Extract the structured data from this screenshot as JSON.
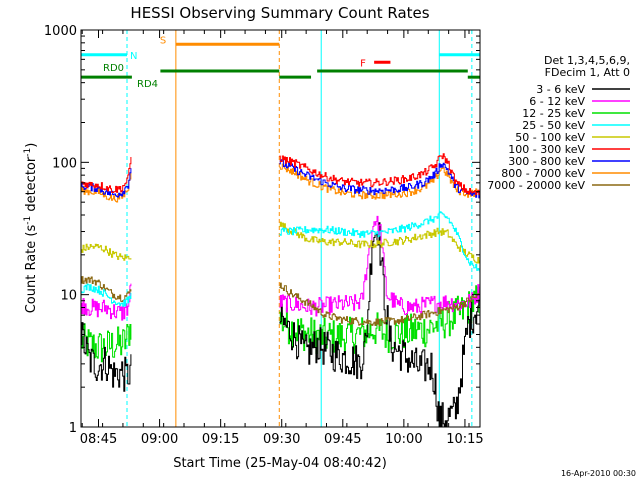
{
  "chart_data": {
    "type": "line",
    "title": "HESSI Observing Summary Count Rates",
    "xlabel": "Start Time (25-May-04 08:40:42)",
    "ylabel_main": "Count Rate (s",
    "ylabel_sup": "-1",
    "ylabel_rest": " detector",
    "ylabel_sup2": "-1",
    "ylabel_end": ")",
    "y_scale": "log",
    "ylim": [
      1,
      1000
    ],
    "y_ticks": [
      {
        "value": 1,
        "label": "1"
      },
      {
        "value": 10,
        "label": "10"
      },
      {
        "value": 100,
        "label": "100"
      },
      {
        "value": 1000,
        "label": "1000"
      }
    ],
    "xlim_minutes": [
      0,
      98
    ],
    "x_ticks": [
      {
        "minute": 4.3,
        "label": "08:45"
      },
      {
        "minute": 19.3,
        "label": "09:00"
      },
      {
        "minute": 34.3,
        "label": "09:15"
      },
      {
        "minute": 49.3,
        "label": "09:30"
      },
      {
        "minute": 64.3,
        "label": "09:45"
      },
      {
        "minute": 79.3,
        "label": "10:00"
      },
      {
        "minute": 94.3,
        "label": "10:15"
      }
    ],
    "legend": {
      "placement": "right",
      "header": [
        "Det 1,3,4,5,6,9,",
        "FDecim 1, Att 0"
      ],
      "entries": [
        {
          "label": "3 - 6 keV",
          "color": "#000000"
        },
        {
          "label": "6 - 12 keV",
          "color": "#ff00ff"
        },
        {
          "label": "12 - 25 keV",
          "color": "#00e000"
        },
        {
          "label": "25 - 50 keV",
          "color": "#00ffff"
        },
        {
          "label": "50 - 100 keV",
          "color": "#c8c800"
        },
        {
          "label": "100 - 300 keV",
          "color": "#ff0000"
        },
        {
          "label": "300 - 800 keV",
          "color": "#0000ff"
        },
        {
          "label": "800 - 7000 keV",
          "color": "#ff8c00"
        },
        {
          "label": "7000 - 20000 keV",
          "color": "#8b6914"
        }
      ]
    },
    "segments": [
      {
        "start": 0,
        "end": 12.5
      },
      {
        "start": 48.7,
        "end": 98
      }
    ],
    "series": [
      {
        "name": "3 - 6 keV",
        "color": "#000000",
        "seg1": [
          [
            0,
            5
          ],
          [
            2,
            3.2
          ],
          [
            4,
            2.9
          ],
          [
            6,
            3.1
          ],
          [
            8,
            2.5
          ],
          [
            10,
            2.6
          ],
          [
            11,
            2.4
          ],
          [
            12.3,
            2.7
          ]
        ],
        "seg2": [
          [
            48.7,
            6.5
          ],
          [
            52,
            5
          ],
          [
            55,
            3.6
          ],
          [
            58,
            4.2
          ],
          [
            62,
            3.6
          ],
          [
            64,
            3.4
          ],
          [
            67,
            3.2
          ],
          [
            68.5,
            3
          ],
          [
            70,
            4.5
          ],
          [
            71.5,
            28
          ],
          [
            73,
            32
          ],
          [
            74.5,
            9
          ],
          [
            76,
            4.2
          ],
          [
            79,
            3.5
          ],
          [
            83,
            2.8
          ],
          [
            86,
            2.9
          ],
          [
            87,
            2
          ],
          [
            88,
            1.1
          ],
          [
            92,
            1.3
          ],
          [
            95,
            6
          ],
          [
            98,
            9
          ]
        ]
      },
      {
        "name": "6 - 12 keV",
        "color": "#ff00ff",
        "seg1": [
          [
            0,
            8.5
          ],
          [
            2,
            8
          ],
          [
            4,
            7.8
          ],
          [
            6,
            8
          ],
          [
            8,
            7.5
          ],
          [
            10,
            7.2
          ],
          [
            11.5,
            8
          ],
          [
            12.3,
            12
          ]
        ],
        "seg2": [
          [
            48.7,
            8.8
          ],
          [
            52,
            8.5
          ],
          [
            56,
            8
          ],
          [
            60,
            8.2
          ],
          [
            64,
            8.5
          ],
          [
            67,
            8.5
          ],
          [
            69,
            9
          ],
          [
            70.5,
            20
          ],
          [
            72,
            38
          ],
          [
            73.5,
            30
          ],
          [
            75,
            10
          ],
          [
            78,
            8.2
          ],
          [
            82,
            8
          ],
          [
            86,
            8.5
          ],
          [
            90,
            8.8
          ],
          [
            93,
            8.5
          ],
          [
            96,
            9
          ],
          [
            98,
            11
          ]
        ]
      },
      {
        "name": "12 - 25 keV",
        "color": "#00e000",
        "seg1": [
          [
            0,
            4.5
          ],
          [
            2,
            4.2
          ],
          [
            4,
            4
          ],
          [
            6,
            4
          ],
          [
            8,
            4.2
          ],
          [
            10,
            4.2
          ],
          [
            11,
            4.5
          ],
          [
            12.3,
            6
          ]
        ],
        "seg2": [
          [
            48.7,
            6.5
          ],
          [
            52,
            5.5
          ],
          [
            56,
            5
          ],
          [
            60,
            4.8
          ],
          [
            64,
            4.8
          ],
          [
            68,
            5
          ],
          [
            70,
            5.2
          ],
          [
            72,
            5.5
          ],
          [
            75,
            5
          ],
          [
            80,
            5.2
          ],
          [
            85,
            5.5
          ],
          [
            90,
            6.5
          ],
          [
            94,
            7.5
          ],
          [
            96,
            8.5
          ],
          [
            98,
            9
          ]
        ]
      },
      {
        "name": "25 - 50 keV",
        "color": "#00ffff",
        "seg1": [
          [
            0,
            11
          ],
          [
            2,
            11.5
          ],
          [
            4,
            11
          ],
          [
            6,
            10
          ],
          [
            8,
            9
          ],
          [
            10,
            8.5
          ],
          [
            11.5,
            9
          ],
          [
            12.3,
            10
          ]
        ],
        "seg2": [
          [
            48.7,
            30
          ],
          [
            52,
            30
          ],
          [
            56,
            31
          ],
          [
            60,
            31
          ],
          [
            64,
            30
          ],
          [
            68,
            29
          ],
          [
            72,
            29
          ],
          [
            76,
            30
          ],
          [
            80,
            32
          ],
          [
            84,
            35
          ],
          [
            87,
            38
          ],
          [
            88.5,
            40
          ],
          [
            90,
            38
          ],
          [
            92,
            30
          ],
          [
            95,
            18
          ],
          [
            98,
            15
          ]
        ]
      },
      {
        "name": "50 - 100 keV",
        "color": "#c8c800",
        "seg1": [
          [
            0,
            22
          ],
          [
            2,
            23
          ],
          [
            4,
            23
          ],
          [
            6,
            22
          ],
          [
            8,
            20
          ],
          [
            10,
            19
          ],
          [
            11.5,
            19
          ],
          [
            12.3,
            20
          ]
        ],
        "seg2": [
          [
            48.7,
            34
          ],
          [
            52,
            30
          ],
          [
            56,
            26
          ],
          [
            60,
            25
          ],
          [
            64,
            25
          ],
          [
            68,
            24
          ],
          [
            72,
            24
          ],
          [
            76,
            25
          ],
          [
            80,
            26
          ],
          [
            84,
            28
          ],
          [
            88,
            30
          ],
          [
            90,
            29
          ],
          [
            92,
            24
          ],
          [
            95,
            20
          ],
          [
            98,
            18
          ]
        ]
      },
      {
        "name": "100 - 300 keV",
        "color": "#ff0000",
        "seg1": [
          [
            0,
            70
          ],
          [
            2,
            68
          ],
          [
            4,
            68
          ],
          [
            6,
            65
          ],
          [
            8,
            62
          ],
          [
            10,
            64
          ],
          [
            11.5,
            75
          ],
          [
            12.3,
            115
          ]
        ],
        "seg2": [
          [
            48.7,
            108
          ],
          [
            52,
            100
          ],
          [
            56,
            88
          ],
          [
            60,
            78
          ],
          [
            64,
            72
          ],
          [
            68,
            70
          ],
          [
            72,
            70
          ],
          [
            76,
            72
          ],
          [
            80,
            75
          ],
          [
            84,
            82
          ],
          [
            87,
            95
          ],
          [
            88.5,
            115
          ],
          [
            90,
            100
          ],
          [
            92,
            70
          ],
          [
            95,
            60
          ],
          [
            98,
            58
          ]
        ]
      },
      {
        "name": "300 - 800 keV",
        "color": "#0000ff",
        "seg1": [
          [
            0,
            66
          ],
          [
            2,
            65
          ],
          [
            4,
            64
          ],
          [
            6,
            60
          ],
          [
            8,
            57
          ],
          [
            10,
            59
          ],
          [
            11.5,
            68
          ],
          [
            12.3,
            95
          ]
        ],
        "seg2": [
          [
            48.7,
            100
          ],
          [
            52,
            90
          ],
          [
            56,
            78
          ],
          [
            60,
            70
          ],
          [
            64,
            64
          ],
          [
            68,
            62
          ],
          [
            72,
            61
          ],
          [
            76,
            62
          ],
          [
            80,
            64
          ],
          [
            84,
            70
          ],
          [
            87,
            82
          ],
          [
            88.5,
            100
          ],
          [
            90,
            88
          ],
          [
            92,
            65
          ],
          [
            95,
            58
          ],
          [
            98,
            56
          ]
        ]
      },
      {
        "name": "800 - 7000 keV",
        "color": "#ff8c00",
        "seg1": [
          [
            0,
            62
          ],
          [
            2,
            60
          ],
          [
            4,
            60
          ],
          [
            6,
            56
          ],
          [
            8,
            53
          ],
          [
            10,
            55
          ],
          [
            11.5,
            63
          ],
          [
            12.3,
            90
          ]
        ],
        "seg2": [
          [
            48.7,
            95
          ],
          [
            52,
            85
          ],
          [
            56,
            72
          ],
          [
            60,
            64
          ],
          [
            64,
            59
          ],
          [
            68,
            57
          ],
          [
            72,
            56
          ],
          [
            76,
            57
          ],
          [
            80,
            59
          ],
          [
            84,
            64
          ],
          [
            87,
            75
          ],
          [
            88.5,
            92
          ],
          [
            90,
            80
          ],
          [
            92,
            62
          ],
          [
            95,
            58
          ],
          [
            98,
            60
          ]
        ]
      },
      {
        "name": "7000 - 20000 keV",
        "color": "#8b6914",
        "seg1": [
          [
            0,
            13
          ],
          [
            2,
            13
          ],
          [
            4,
            12.5
          ],
          [
            6,
            11
          ],
          [
            8,
            10
          ],
          [
            10,
            9.5
          ],
          [
            11.5,
            10
          ],
          [
            12.3,
            11
          ]
        ],
        "seg2": [
          [
            48.7,
            12
          ],
          [
            52,
            10
          ],
          [
            56,
            8.5
          ],
          [
            60,
            7
          ],
          [
            64,
            6.5
          ],
          [
            68,
            6.3
          ],
          [
            72,
            6.2
          ],
          [
            76,
            6.3
          ],
          [
            80,
            6.5
          ],
          [
            84,
            7
          ],
          [
            88,
            7.5
          ],
          [
            92,
            8
          ],
          [
            95,
            9
          ],
          [
            98,
            10
          ]
        ]
      }
    ],
    "flag_bars": [
      {
        "label": "N",
        "color": "#00ffff",
        "y_value": 650,
        "ranges": [
          [
            0,
            11.3
          ],
          [
            88,
            98
          ]
        ]
      },
      {
        "label": "S",
        "color": "#ff8c00",
        "y_value": 780,
        "ranges": [
          [
            23.3,
            48.7
          ]
        ]
      },
      {
        "label": "RD0",
        "color": "#008000",
        "y_value": 490,
        "ranges": [
          [
            19.5,
            48.7
          ],
          [
            58,
            95
          ]
        ]
      },
      {
        "label": "RD4",
        "color": "#008000",
        "y_value": 440,
        "ranges": [
          [
            0,
            12.5
          ],
          [
            48.7,
            56.5
          ],
          [
            95,
            98
          ]
        ]
      },
      {
        "label": "F",
        "color": "#ff0000",
        "y_value": 570,
        "ranges": [
          [
            72,
            76
          ]
        ]
      }
    ],
    "vertical_lines": [
      {
        "minute": 11.3,
        "color": "#00ffff",
        "style": "dashed"
      },
      {
        "minute": 23.3,
        "color": "#ff8c00",
        "style": "solid"
      },
      {
        "minute": 48.7,
        "color": "#ff8c00",
        "style": "dashed"
      },
      {
        "minute": 59.0,
        "color": "#00ffff",
        "style": "solid"
      },
      {
        "minute": 88.0,
        "color": "#00ffff",
        "style": "solid"
      },
      {
        "minute": 96.0,
        "color": "#00ffff",
        "style": "dashed"
      }
    ],
    "footer_date": "16-Apr-2010 00:30",
    "grid": false
  }
}
